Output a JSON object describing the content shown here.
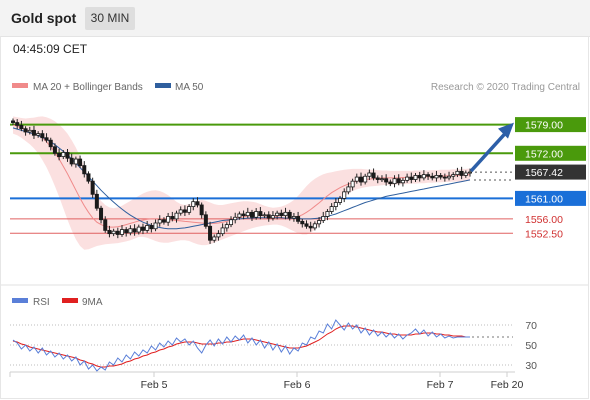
{
  "header": {
    "title": "Gold spot",
    "timeframe": "30 MIN",
    "time": "04:45:09 CET"
  },
  "legend": {
    "ma20_bb": "MA 20 + Bollinger Bands",
    "ma50": "MA 50",
    "copyright": "Research © 2020 Trading Central",
    "rsi": "RSI",
    "rsi_ma": "9MA"
  },
  "colors": {
    "resistance": "#4a9a0c",
    "support": "#1a6fd8",
    "support_line": "#e06060",
    "bollinger": "#fadada",
    "ma20": "#f08a8a",
    "ma50": "#2f5f9e",
    "rsi": "#5a7fd8",
    "rsi_ma": "#e02020",
    "current": "#333333",
    "arrow": "#2d5fa8"
  },
  "chart_data": {
    "type": "candlestick",
    "ylim": [
      1545,
      1585
    ],
    "x_ticks": [
      "Feb 5",
      "Feb 6",
      "Feb 7",
      "Feb 20"
    ],
    "levels": [
      {
        "value": 1579.0,
        "label": "1579.00",
        "kind": "resistance"
      },
      {
        "value": 1572.0,
        "label": "1572.00",
        "kind": "resistance"
      },
      {
        "value": 1567.42,
        "label": "1567.42",
        "kind": "current"
      },
      {
        "value": 1561.0,
        "label": "1561.00",
        "kind": "pivot"
      },
      {
        "value": 1556.0,
        "label": "1556.00",
        "kind": "support"
      },
      {
        "value": 1552.5,
        "label": "1552.50",
        "kind": "support"
      }
    ],
    "close": [
      1579.5,
      1578.8,
      1578.0,
      1577.2,
      1577.6,
      1576.4,
      1576.8,
      1575.8,
      1575.2,
      1573.6,
      1572.0,
      1571.2,
      1572.2,
      1570.8,
      1569.4,
      1570.6,
      1569.0,
      1567.0,
      1565.2,
      1562.0,
      1558.6,
      1555.8,
      1553.2,
      1552.4,
      1553.0,
      1552.2,
      1553.4,
      1552.6,
      1553.6,
      1552.8,
      1554.0,
      1553.2,
      1554.4,
      1553.6,
      1555.0,
      1555.8,
      1555.2,
      1556.6,
      1556.0,
      1557.4,
      1558.2,
      1557.6,
      1559.0,
      1560.2,
      1559.4,
      1557.0,
      1554.2,
      1550.8,
      1551.6,
      1552.4,
      1553.8,
      1554.6,
      1555.8,
      1556.4,
      1557.2,
      1556.8,
      1557.6,
      1556.4,
      1557.8,
      1556.8,
      1557.0,
      1556.2,
      1556.8,
      1557.4,
      1556.8,
      1557.6,
      1556.2,
      1556.6,
      1555.4,
      1554.8,
      1554.2,
      1553.8,
      1554.8,
      1555.6,
      1556.6,
      1557.8,
      1559.0,
      1560.0,
      1561.0,
      1562.6,
      1563.8,
      1565.2,
      1566.2,
      1565.0,
      1566.4,
      1567.2,
      1566.0,
      1565.6,
      1565.8,
      1565.0,
      1564.6,
      1565.8,
      1564.8,
      1565.4,
      1566.2,
      1565.6,
      1566.6,
      1566.0,
      1566.8,
      1566.4,
      1566.0,
      1566.6,
      1566.2,
      1566.0,
      1566.4,
      1566.8,
      1567.6,
      1566.6,
      1567.2,
      1567.42
    ],
    "ma20_upper": [
      1581.0,
      1580.8,
      1580.6,
      1580.5,
      1580.6,
      1580.7,
      1580.9,
      1581.0,
      1580.8,
      1580.4,
      1579.8,
      1579.0,
      1578.0,
      1576.8,
      1575.2,
      1573.4,
      1571.2,
      1568.8,
      1566.4,
      1564.0,
      1562.0,
      1560.4,
      1559.4,
      1558.8,
      1558.6,
      1558.8,
      1559.2,
      1559.8,
      1560.4,
      1561.0,
      1561.6,
      1562.2,
      1562.6,
      1562.9,
      1563.0,
      1562.8,
      1562.4,
      1561.8,
      1561.0,
      1560.2,
      1559.6,
      1559.4,
      1559.6,
      1560.0,
      1560.4,
      1560.6,
      1560.4,
      1560.0,
      1559.6,
      1559.4,
      1559.4,
      1559.6,
      1559.8,
      1560.0,
      1560.2,
      1560.3,
      1560.3,
      1560.2,
      1560.0,
      1559.6,
      1559.2,
      1558.9,
      1558.7,
      1558.8,
      1559.0,
      1559.4,
      1559.9,
      1560.6,
      1561.6,
      1562.8,
      1564.0,
      1565.0,
      1565.8,
      1566.4,
      1566.9,
      1567.2,
      1567.4,
      1567.6,
      1567.8,
      1568.0,
      1568.1,
      1568.2,
      1568.2,
      1568.2,
      1568.1,
      1568.0,
      1568.0,
      1567.9,
      1567.8,
      1567.8,
      1567.7,
      1567.7,
      1567.7,
      1567.7,
      1567.7,
      1567.7,
      1567.8,
      1567.8,
      1567.8,
      1567.8,
      1567.9,
      1567.9,
      1568.0,
      1568.0,
      1568.0,
      1568.1,
      1568.1,
      1568.2,
      1568.2,
      1568.3
    ],
    "ma20_lower": [
      1576.8,
      1576.4,
      1575.8,
      1575.0,
      1574.2,
      1573.2,
      1572.0,
      1570.4,
      1568.6,
      1566.4,
      1564.0,
      1561.4,
      1558.6,
      1555.8,
      1553.2,
      1551.0,
      1549.4,
      1548.5,
      1548.6,
      1549.0,
      1549.4,
      1549.6,
      1549.8,
      1549.9,
      1550.0,
      1550.1,
      1550.3,
      1550.5,
      1550.8,
      1551.2,
      1551.6,
      1551.6,
      1551.4,
      1551.0,
      1550.6,
      1550.3,
      1550.2,
      1550.2,
      1550.4,
      1550.6,
      1550.8,
      1550.8,
      1550.6,
      1550.2,
      1549.8,
      1549.6,
      1549.6,
      1549.8,
      1550.2,
      1550.6,
      1551.0,
      1551.4,
      1551.8,
      1552.2,
      1552.6,
      1553.0,
      1553.4,
      1553.7,
      1554.0,
      1554.2,
      1554.4,
      1554.5,
      1554.6,
      1554.6,
      1554.4,
      1554.0,
      1553.5,
      1553.0,
      1552.5,
      1552.2,
      1552.2,
      1552.6,
      1553.4,
      1554.4,
      1555.6,
      1557.0,
      1558.4,
      1559.6,
      1560.6,
      1561.4,
      1562.2,
      1562.8,
      1563.2,
      1563.5,
      1563.7,
      1563.9,
      1564.0,
      1564.1,
      1564.2,
      1564.3,
      1564.3,
      1564.4,
      1564.4,
      1564.5,
      1564.5,
      1564.6,
      1564.6,
      1564.7,
      1564.7,
      1564.8,
      1564.8,
      1564.9,
      1564.9,
      1565.0,
      1565.0,
      1565.1,
      1565.1,
      1565.2,
      1565.2,
      1565.3
    ],
    "ma20": [
      1578.9,
      1578.6,
      1578.2,
      1577.8,
      1577.4,
      1577.0,
      1576.5,
      1575.8,
      1574.8,
      1573.6,
      1572.2,
      1570.6,
      1568.8,
      1567.0,
      1565.0,
      1563.0,
      1561.0,
      1559.2,
      1557.6,
      1556.2,
      1555.2,
      1554.6,
      1554.2,
      1554.0,
      1554.0,
      1554.1,
      1554.3,
      1554.6,
      1554.9,
      1555.2,
      1555.5,
      1555.7,
      1555.9,
      1556.0,
      1556.0,
      1556.0,
      1555.9,
      1555.8,
      1555.7,
      1555.6,
      1555.5,
      1555.4,
      1555.3,
      1555.2,
      1555.1,
      1555.0,
      1554.9,
      1554.9,
      1554.9,
      1555.0,
      1555.2,
      1555.4,
      1555.7,
      1556.0,
      1556.3,
      1556.5,
      1556.7,
      1556.8,
      1556.9,
      1556.9,
      1556.8,
      1556.7,
      1556.6,
      1556.5,
      1556.3,
      1556.2,
      1556.2,
      1556.3,
      1556.6,
      1557.0,
      1557.6,
      1558.3,
      1559.1,
      1559.9,
      1560.8,
      1561.6,
      1562.4,
      1563.0,
      1563.6,
      1564.1,
      1564.5,
      1564.9,
      1565.2,
      1565.4,
      1565.6,
      1565.7,
      1565.8,
      1565.9,
      1566.0,
      1566.0,
      1566.0,
      1566.0,
      1566.0,
      1566.1,
      1566.1,
      1566.1,
      1566.2,
      1566.2,
      1566.3,
      1566.3,
      1566.3,
      1566.4,
      1566.4,
      1566.5,
      1566.5,
      1566.6,
      1566.6,
      1566.7,
      1566.7,
      1566.8
    ],
    "ma50": [
      1578.2,
      1577.9,
      1577.6,
      1577.3,
      1577.0,
      1576.7,
      1576.3,
      1575.9,
      1575.4,
      1574.8,
      1574.1,
      1573.3,
      1572.5,
      1571.6,
      1570.6,
      1569.6,
      1568.5,
      1567.4,
      1566.3,
      1565.2,
      1564.1,
      1563.0,
      1562.0,
      1561.0,
      1560.1,
      1559.2,
      1558.4,
      1557.6,
      1556.9,
      1556.3,
      1555.7,
      1555.2,
      1554.8,
      1554.4,
      1554.1,
      1553.9,
      1553.7,
      1553.6,
      1553.6,
      1553.6,
      1553.7,
      1553.8,
      1554.0,
      1554.2,
      1554.4,
      1554.6,
      1554.8,
      1555.0,
      1555.2,
      1555.4,
      1555.6,
      1555.7,
      1555.8,
      1555.9,
      1556.0,
      1556.1,
      1556.2,
      1556.2,
      1556.3,
      1556.3,
      1556.3,
      1556.3,
      1556.3,
      1556.3,
      1556.3,
      1556.2,
      1556.2,
      1556.1,
      1556.1,
      1556.0,
      1556.0,
      1556.0,
      1556.1,
      1556.2,
      1556.4,
      1556.6,
      1556.9,
      1557.2,
      1557.6,
      1558.0,
      1558.4,
      1558.8,
      1559.2,
      1559.6,
      1560.0,
      1560.3,
      1560.6,
      1560.9,
      1561.2,
      1561.5,
      1561.7,
      1561.9,
      1562.1,
      1562.3,
      1562.5,
      1562.7,
      1562.9,
      1563.1,
      1563.3,
      1563.5,
      1563.7,
      1563.9,
      1564.1,
      1564.3,
      1564.5,
      1564.7,
      1564.9,
      1565.1,
      1565.3,
      1565.5
    ],
    "rsi": {
      "ylim": [
        20,
        80
      ],
      "ticks": [
        70,
        50,
        30
      ],
      "rsi": [
        55,
        52,
        46,
        50,
        44,
        48,
        42,
        47,
        40,
        44,
        38,
        42,
        36,
        40,
        34,
        38,
        30,
        34,
        26,
        30,
        24,
        28,
        25,
        33,
        30,
        37,
        33,
        40,
        36,
        43,
        39,
        45,
        42,
        49,
        45,
        52,
        48,
        54,
        50,
        57,
        53,
        56,
        50,
        54,
        47,
        42,
        50,
        55,
        49,
        56,
        51,
        58,
        53,
        59,
        55,
        60,
        52,
        57,
        50,
        55,
        47,
        53,
        45,
        51,
        43,
        49,
        41,
        47,
        44,
        52,
        50,
        58,
        56,
        64,
        62,
        71,
        66,
        75,
        70,
        65,
        72,
        66,
        70,
        62,
        67,
        60,
        65,
        59,
        63,
        58,
        62,
        57,
        61,
        56,
        60,
        62,
        66,
        61,
        65,
        59,
        63,
        58,
        61,
        57,
        59,
        57,
        58,
        58,
        58,
        58
      ],
      "ma": [
        54,
        53,
        51,
        50,
        48,
        47,
        46,
        45,
        44,
        43,
        42,
        41,
        40,
        39,
        38,
        37,
        35,
        34,
        32,
        31,
        29,
        28,
        28,
        29,
        29,
        30,
        31,
        33,
        34,
        36,
        37,
        39,
        40,
        42,
        43,
        45,
        46,
        48,
        49,
        51,
        52,
        53,
        53,
        53,
        52,
        51,
        51,
        51,
        51,
        52,
        52,
        53,
        53,
        54,
        55,
        56,
        56,
        56,
        55,
        54,
        53,
        52,
        51,
        50,
        49,
        48,
        47,
        47,
        47,
        48,
        49,
        51,
        53,
        55,
        58,
        61,
        63,
        66,
        68,
        69,
        69,
        69,
        68,
        67,
        66,
        65,
        64,
        63,
        63,
        62,
        61,
        61,
        60,
        60,
        60,
        60,
        61,
        61,
        62,
        62,
        62,
        61,
        61,
        60,
        60,
        59,
        59,
        59,
        58,
        58
      ]
    }
  }
}
